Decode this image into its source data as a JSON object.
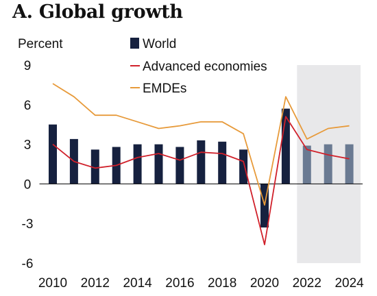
{
  "chart_data": {
    "type": "bar",
    "title": "A. Global growth",
    "ylabel": "Percent",
    "ylim": [
      -6,
      9
    ],
    "yticks": [
      -6,
      -3,
      0,
      3,
      6,
      9
    ],
    "x": [
      2010,
      2011,
      2012,
      2013,
      2014,
      2015,
      2016,
      2017,
      2018,
      2019,
      2020,
      2021,
      2022,
      2023,
      2024
    ],
    "xtick_labels": [
      "2010",
      "2012",
      "2014",
      "2016",
      "2018",
      "2020",
      "2022",
      "2024"
    ],
    "forecast_shading": {
      "from": 2022,
      "to": 2024,
      "color": "#e8e8ea"
    },
    "legend_position": "top-center",
    "series": [
      {
        "name": "World",
        "kind": "bar",
        "color": "#16213f",
        "forecast_color": "#6a7a92",
        "values": [
          4.5,
          3.4,
          2.6,
          2.8,
          3.0,
          3.0,
          2.8,
          3.3,
          3.2,
          2.6,
          -3.3,
          5.7,
          2.9,
          3.0,
          3.0
        ]
      },
      {
        "name": "Advanced economies",
        "kind": "line",
        "color": "#d0202a",
        "values": [
          3.0,
          1.7,
          1.2,
          1.4,
          2.0,
          2.3,
          1.8,
          2.4,
          2.3,
          1.7,
          -4.6,
          5.1,
          2.6,
          2.2,
          1.9
        ]
      },
      {
        "name": "EMDEs",
        "kind": "line",
        "color": "#e79a3a",
        "values": [
          7.6,
          6.6,
          5.2,
          5.2,
          4.7,
          4.2,
          4.4,
          4.7,
          4.7,
          3.8,
          -1.6,
          6.6,
          3.4,
          4.2,
          4.4
        ]
      }
    ]
  }
}
